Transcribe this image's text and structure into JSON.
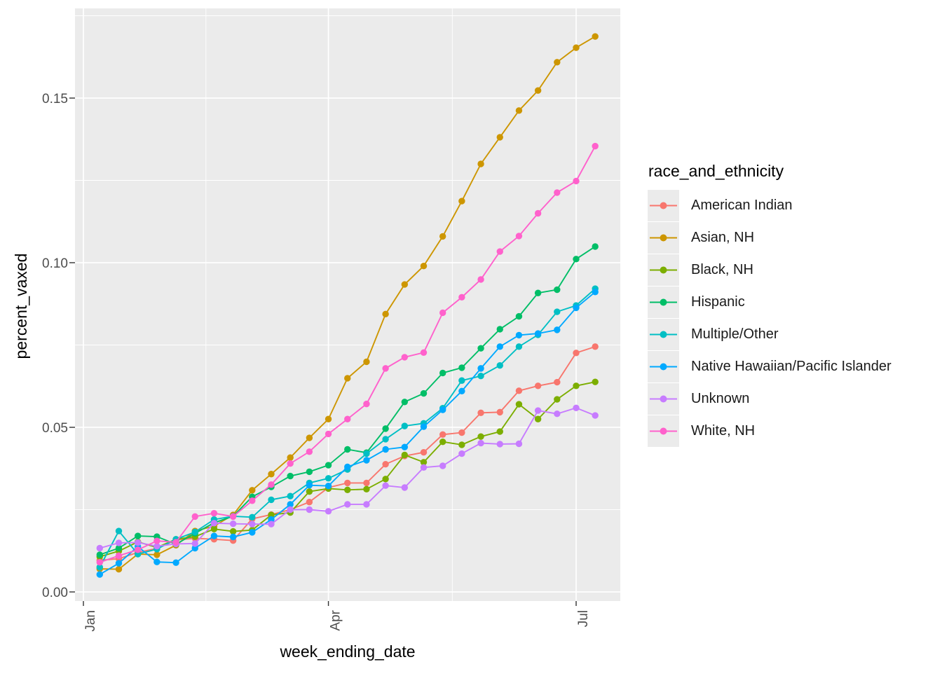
{
  "chart_data": {
    "type": "line",
    "title": "",
    "xlabel": "week_ending_date",
    "ylabel": "percent_vaxed",
    "legend_title": "race_and_ethnicity",
    "legend_position": "right",
    "panel_background": "#EBEBEB",
    "grid_color": "#FFFFFF",
    "tick_color": "#333333",
    "axis_text_color": "#4D4D4D",
    "x_unit": "day_of_year",
    "x": [
      6,
      13,
      20,
      27,
      34,
      41,
      48,
      55,
      62,
      69,
      76,
      83,
      90,
      97,
      104,
      111,
      118,
      125,
      132,
      139,
      146,
      153,
      160,
      167,
      174,
      181,
      188
    ],
    "x_tick_labels": [
      "Jan",
      "Apr",
      "Jul"
    ],
    "x_tick_positions": [
      0,
      90,
      181
    ],
    "x_minor_positions": [
      45,
      135.5
    ],
    "y_tick_labels": [
      "0.00",
      "0.05",
      "0.10",
      "0.15"
    ],
    "y_tick_values": [
      0,
      0.05,
      0.1,
      0.15
    ],
    "y_minor_values": [
      0.025,
      0.075,
      0.125,
      0.175
    ],
    "ylim": [
      0,
      0.177
    ],
    "series": [
      {
        "name": "American Indian",
        "color": "#F8766D",
        "values": [
          0.0096,
          0.0101,
          0.012,
          0.0132,
          0.0158,
          0.0163,
          0.016,
          0.0156,
          0.0222,
          0.0235,
          0.025,
          0.0273,
          0.0317,
          0.0331,
          0.0331,
          0.0388,
          0.0413,
          0.0424,
          0.0478,
          0.0484,
          0.0544,
          0.0546,
          0.0611,
          0.0626,
          0.0637,
          0.0726,
          0.0745
        ]
      },
      {
        "name": "Asian, NH",
        "color": "#CD9600",
        "values": [
          0.007,
          0.0069,
          0.0115,
          0.0113,
          0.0142,
          0.0185,
          0.02,
          0.0234,
          0.0309,
          0.0358,
          0.0408,
          0.0468,
          0.0525,
          0.0649,
          0.0699,
          0.0844,
          0.0934,
          0.099,
          0.108,
          0.1187,
          0.13,
          0.1381,
          0.1462,
          0.1523,
          0.1609,
          0.1653,
          0.1687
        ]
      },
      {
        "name": "Black, NH",
        "color": "#7CAE00",
        "values": [
          0.0107,
          0.0124,
          0.0152,
          0.0135,
          0.016,
          0.0168,
          0.0191,
          0.0184,
          0.0188,
          0.0234,
          0.0241,
          0.0305,
          0.0314,
          0.031,
          0.0312,
          0.0343,
          0.0416,
          0.0394,
          0.0456,
          0.0447,
          0.0472,
          0.0487,
          0.057,
          0.0525,
          0.0585,
          0.0626,
          0.0638
        ]
      },
      {
        "name": "Hispanic",
        "color": "#00BE67",
        "values": [
          0.0113,
          0.0133,
          0.017,
          0.0168,
          0.0145,
          0.0178,
          0.021,
          0.023,
          0.0289,
          0.0319,
          0.0352,
          0.0365,
          0.0385,
          0.0433,
          0.0423,
          0.0496,
          0.0577,
          0.0603,
          0.0665,
          0.0681,
          0.074,
          0.0798,
          0.0837,
          0.0908,
          0.0918,
          0.1011,
          0.1049
        ]
      },
      {
        "name": "Multiple/Other",
        "color": "#00BFC4",
        "values": [
          0.0075,
          0.0185,
          0.0115,
          0.013,
          0.016,
          0.0182,
          0.022,
          0.023,
          0.0227,
          0.028,
          0.0291,
          0.0331,
          0.0345,
          0.0372,
          0.042,
          0.0464,
          0.0504,
          0.0512,
          0.0558,
          0.0642,
          0.0656,
          0.0688,
          0.0745,
          0.0781,
          0.0851,
          0.087,
          0.0921
        ]
      },
      {
        "name": "Native Hawaiian/Pacific Islander",
        "color": "#00A9FF",
        "values": [
          0.0053,
          0.0087,
          0.0138,
          0.0091,
          0.0089,
          0.0133,
          0.017,
          0.0167,
          0.0181,
          0.022,
          0.0266,
          0.0324,
          0.0322,
          0.038,
          0.04,
          0.0433,
          0.044,
          0.0502,
          0.0553,
          0.061,
          0.0679,
          0.0745,
          0.078,
          0.0785,
          0.0796,
          0.0863,
          0.0911
        ]
      },
      {
        "name": "Unknown",
        "color": "#C77CFF",
        "values": [
          0.0133,
          0.0149,
          0.015,
          0.0139,
          0.0146,
          0.0147,
          0.0209,
          0.0207,
          0.0206,
          0.0206,
          0.025,
          0.025,
          0.0245,
          0.0266,
          0.0266,
          0.0323,
          0.0317,
          0.0378,
          0.0383,
          0.042,
          0.0452,
          0.0449,
          0.045,
          0.0551,
          0.0541,
          0.0559,
          0.0536
        ]
      },
      {
        "name": "White, NH",
        "color": "#FF61CC",
        "values": [
          0.009,
          0.011,
          0.0128,
          0.0155,
          0.0151,
          0.0229,
          0.0239,
          0.0229,
          0.0277,
          0.0326,
          0.039,
          0.0426,
          0.048,
          0.0525,
          0.0571,
          0.0679,
          0.0713,
          0.0727,
          0.0848,
          0.0895,
          0.0949,
          0.1034,
          0.1081,
          0.115,
          0.1213,
          0.1248,
          0.1354
        ]
      }
    ]
  }
}
